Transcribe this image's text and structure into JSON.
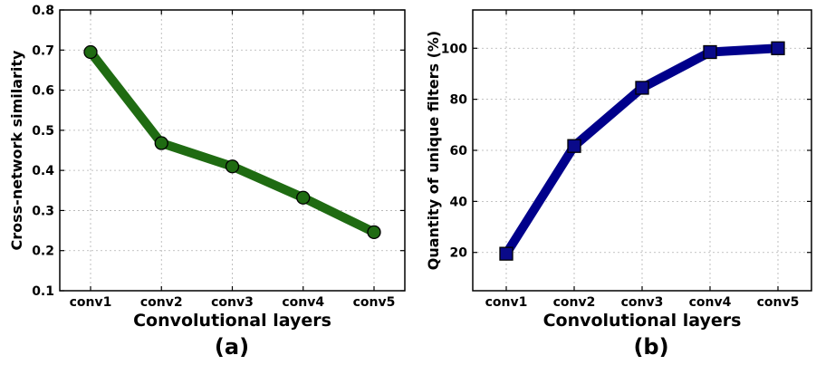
{
  "chart_data": [
    {
      "type": "line",
      "caption": "(a)",
      "xlabel": "Convolutional layers",
      "ylabel": "Cross-network similarity",
      "categories": [
        "conv1",
        "conv2",
        "conv3",
        "conv4",
        "conv5"
      ],
      "values": [
        0.695,
        0.468,
        0.41,
        0.332,
        0.246
      ],
      "ylim": [
        0.1,
        0.8
      ],
      "yticks": [
        "0.1",
        "0.2",
        "0.3",
        "0.4",
        "0.5",
        "0.6",
        "0.7",
        "0.8"
      ],
      "grid": true,
      "marker": "circle",
      "color": "#1f6b12",
      "marker_color": "#1f6b12"
    },
    {
      "type": "line",
      "caption": "(b)",
      "xlabel": "Convolutional layers",
      "ylabel": "Quantity of unique filters (%)",
      "categories": [
        "conv1",
        "conv2",
        "conv3",
        "conv4",
        "conv5"
      ],
      "values": [
        19.5,
        61.7,
        84.5,
        98.5,
        100
      ],
      "ylim": [
        5,
        115
      ],
      "yticks": [
        "20",
        "40",
        "60",
        "80",
        "100"
      ],
      "grid": true,
      "marker": "square",
      "color": "#00008b",
      "marker_color": "#0a0a8a"
    }
  ]
}
